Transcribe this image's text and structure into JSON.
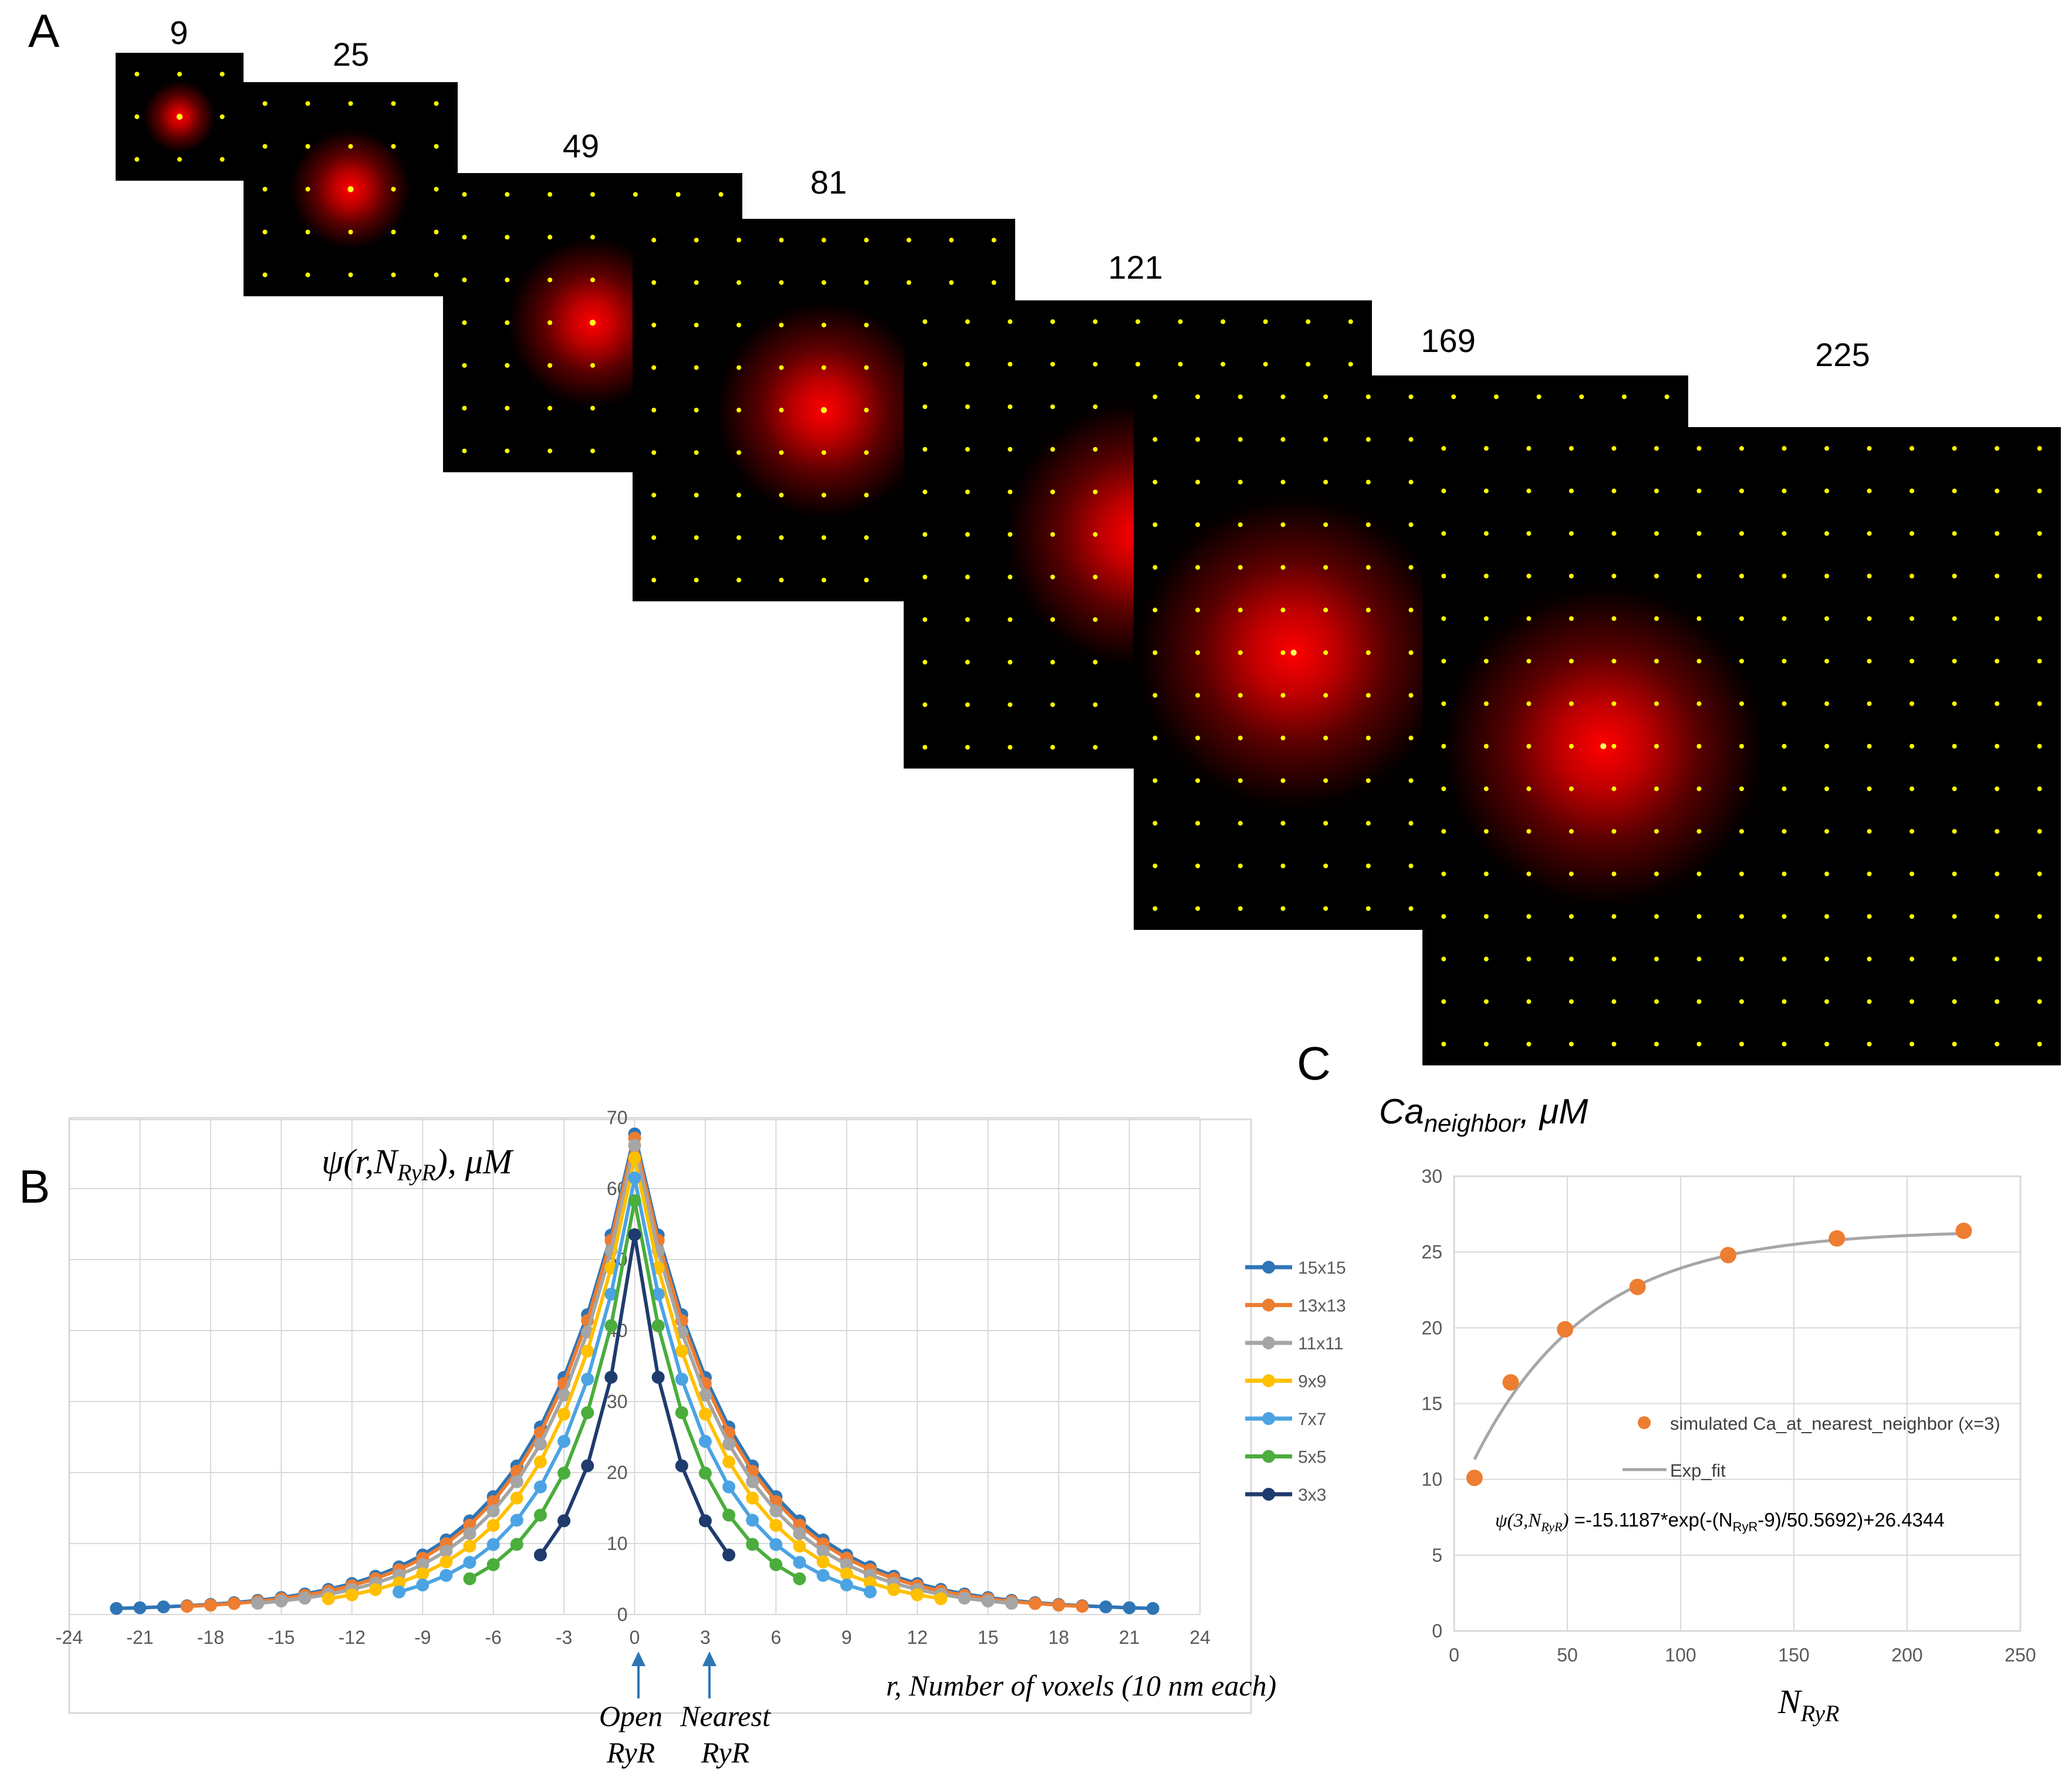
{
  "panels": {
    "a": {
      "letter": "A"
    },
    "b": {
      "letter": "B"
    },
    "c": {
      "letter": "C"
    }
  },
  "colors": {
    "heat_bg": "#000000",
    "heat_glow": "#ff0000",
    "grid_dot": "#ffff00",
    "gridline": "#d9d9d9",
    "axis_text": "#595959",
    "arrow": "#2e75b6",
    "fit_line": "#a6a6a6",
    "scatter_point": "#ed7d31"
  },
  "heatmaps": [
    {
      "label": "9",
      "grid_n": 3
    },
    {
      "label": "25",
      "grid_n": 5
    },
    {
      "label": "49",
      "grid_n": 7
    },
    {
      "label": "81",
      "grid_n": 9
    },
    {
      "label": "121",
      "grid_n": 11
    },
    {
      "label": "169",
      "grid_n": 13
    },
    {
      "label": "225",
      "grid_n": 15
    }
  ],
  "chart_data": [
    {
      "type": "line",
      "title_prefix": "ψ(r,N",
      "title_sub": "RyR",
      "title_suffix": "), μM",
      "xlabel": "r, Number of voxels (10 nm each)",
      "xlim": [
        -24,
        24
      ],
      "ylim": [
        0,
        70
      ],
      "x_ticks": [
        "-24",
        "-21",
        "-18",
        "-15",
        "-12",
        "-9",
        "-6",
        "-3",
        "0",
        "3",
        "6",
        "9",
        "12",
        "15",
        "18",
        "21",
        "24"
      ],
      "y_ticks": [
        "0",
        "10",
        "20",
        "30",
        "40",
        "50",
        "60",
        "70"
      ],
      "annotations": {
        "open_line1": "Open",
        "open_line2": "RyR",
        "nearest_line1": "Nearest",
        "nearest_line2": "RyR"
      },
      "peak_model": "y = peak * exp(-|x| / scale) + base, evaluated at every integer x in [-half, half]",
      "series": [
        {
          "name": "15x15",
          "color": "#2e75b6",
          "half": 22,
          "peak": 67.2,
          "scale": 4.2,
          "base": 0.5
        },
        {
          "name": "13x13",
          "color": "#ed7d31",
          "half": 19,
          "peak": 66.6,
          "scale": 4.1,
          "base": 0.5
        },
        {
          "name": "11x11",
          "color": "#a5a5a5",
          "half": 16,
          "peak": 65.6,
          "scale": 3.9,
          "base": 0.5
        },
        {
          "name": "9x9",
          "color": "#ffc000",
          "half": 13,
          "peak": 63.8,
          "scale": 3.6,
          "base": 0.5
        },
        {
          "name": "7x7",
          "color": "#4ba3e3",
          "half": 10,
          "peak": 61.0,
          "scale": 3.2,
          "base": 0.5
        },
        {
          "name": "5x5",
          "color": "#4aad3c",
          "half": 7,
          "peak": 57.8,
          "scale": 2.75,
          "base": 0.5
        },
        {
          "name": "3x3",
          "color": "#1f3b6e",
          "half": 4,
          "peak": 53.0,
          "scale": 2.1,
          "base": 0.5
        }
      ]
    },
    {
      "type": "scatter",
      "ylabel_prefix": "Ca",
      "ylabel_sub": "neighbor",
      "ylabel_suffix": ", μM",
      "xlabel_prefix": "N",
      "xlabel_sub": "RyR",
      "xlim": [
        0,
        250
      ],
      "ylim": [
        0,
        30
      ],
      "x_ticks": [
        "0",
        "50",
        "100",
        "150",
        "200",
        "250"
      ],
      "y_ticks": [
        "0",
        "5",
        "10",
        "15",
        "20",
        "25",
        "30"
      ],
      "points": {
        "x": [
          9,
          25,
          49,
          81,
          121,
          169,
          225
        ],
        "y": [
          10.1,
          16.4,
          19.9,
          22.7,
          24.8,
          25.9,
          26.4
        ]
      },
      "legend": [
        "simulated Ca_at_nearest_neighbor (x=3)",
        "Exp_fit"
      ],
      "fit": {
        "a": -15.1187,
        "n0": 9,
        "tau": 50.5692,
        "c": 26.4344
      },
      "equation": {
        "lhs_prefix": "ψ(3,N",
        "lhs_sub": "RyR",
        "lhs_suffix": ")",
        "rhs_part1": " =-15.1187*exp(-(N",
        "rhs_sub": "RyR",
        "rhs_part2": "-9)/50.5692)+26.4344"
      }
    }
  ]
}
